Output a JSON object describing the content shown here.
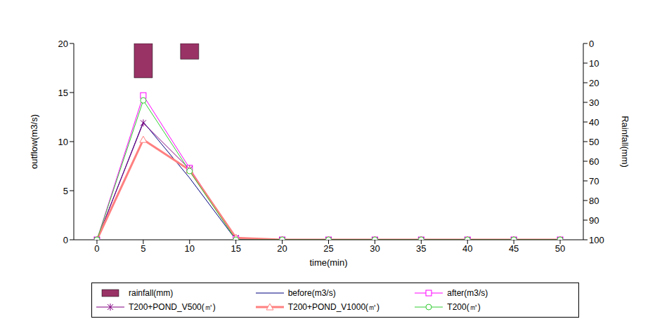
{
  "chart_data": {
    "type": "line",
    "x_label": "time(min)",
    "y_label": "outflow(m3/s)",
    "y2_label": "Rainfall(mm)",
    "categories": [
      "0",
      "5",
      "10",
      "15",
      "20",
      "25",
      "30",
      "35",
      "40",
      "45",
      "50"
    ],
    "ylim": [
      0,
      20
    ],
    "yticks": [
      0,
      5,
      10,
      15,
      20
    ],
    "y2lim": [
      100,
      0
    ],
    "y2ticks": [
      0,
      10,
      20,
      30,
      40,
      50,
      60,
      70,
      80,
      90,
      100
    ],
    "grid": false,
    "legend": "bottom",
    "series": [
      {
        "name": "rainfall(mm)",
        "type": "bar",
        "axis": "y2",
        "color": "#993366",
        "values": [
          null,
          17.5,
          8,
          null,
          null,
          null,
          null,
          null,
          null,
          null,
          null
        ]
      },
      {
        "name": "before(m3/s)",
        "type": "line",
        "color": "#000080",
        "marker": "none",
        "line_style": "solid",
        "values": [
          0,
          12,
          6.3,
          0,
          0,
          0,
          0,
          0,
          0,
          0,
          0
        ]
      },
      {
        "name": "after(m3/s)",
        "type": "line",
        "color": "#ff00ff",
        "marker": "square",
        "line_style": "solid",
        "values": [
          0,
          14.7,
          7.3,
          0.1,
          0,
          0,
          0,
          0,
          0,
          0,
          0
        ]
      },
      {
        "name": "T200+POND_V500(㎥)",
        "type": "line",
        "color": "#800080",
        "marker": "asterisk",
        "line_style": "solid",
        "values": [
          0,
          11.9,
          7.2,
          0.2,
          0,
          0,
          0,
          0,
          0,
          0,
          0
        ]
      },
      {
        "name": "T200+POND_V1000(㎥)",
        "type": "line",
        "color": "#ff8080",
        "marker": "triangle",
        "line_style": "thick",
        "values": [
          0,
          10.2,
          7.1,
          0.2,
          0,
          0,
          0,
          0,
          0,
          0,
          0
        ]
      },
      {
        "name": "T200(㎥)",
        "type": "line",
        "color": "#33cc33",
        "marker": "circle",
        "line_style": "solid",
        "values": [
          0,
          14.2,
          7,
          0,
          0,
          0,
          0,
          0,
          0,
          0,
          0
        ]
      }
    ]
  }
}
